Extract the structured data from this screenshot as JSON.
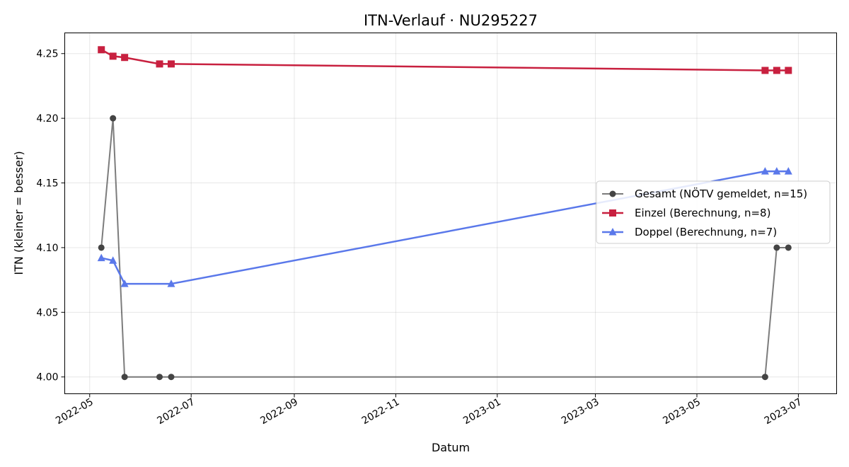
{
  "chart_data": {
    "type": "line",
    "title": "ITN-Verlauf · NU295227",
    "xlabel": "Datum",
    "ylabel": "ITN  (kleiner = besser)",
    "xlim": [
      "2022-04-16",
      "2023-07-24"
    ],
    "ylim": [
      3.987,
      4.266
    ],
    "x_ticks": [
      "2022-05",
      "2022-07",
      "2022-09",
      "2022-11",
      "2023-01",
      "2023-03",
      "2023-05",
      "2023-07"
    ],
    "x_tick_dates": [
      "2022-05-01",
      "2022-07-01",
      "2022-09-01",
      "2022-11-01",
      "2023-01-01",
      "2023-03-01",
      "2023-05-01",
      "2023-07-01"
    ],
    "y_ticks": [
      4.0,
      4.05,
      4.1,
      4.15,
      4.2,
      4.25
    ],
    "y_tick_labels": [
      "4.00",
      "4.05",
      "4.10",
      "4.15",
      "4.20",
      "4.25"
    ],
    "grid": true,
    "legend_position": "right",
    "series": [
      {
        "name": "Gesamt (NÖTV gemeldet, n=15)",
        "color": "#444444",
        "marker": "circle",
        "points": [
          {
            "x": "2022-05-08",
            "y": 4.1
          },
          {
            "x": "2022-05-15",
            "y": 4.2
          },
          {
            "x": "2022-05-22",
            "y": 4.0
          },
          {
            "x": "2022-06-12",
            "y": 4.0
          },
          {
            "x": "2022-06-19",
            "y": 4.0
          },
          {
            "x": "2023-06-11",
            "y": 4.0
          },
          {
            "x": "2023-06-18",
            "y": 4.1
          },
          {
            "x": "2023-06-25",
            "y": 4.1
          }
        ]
      },
      {
        "name": "Einzel (Berechnung, n=8)",
        "color": "#c8203f",
        "marker": "square",
        "points": [
          {
            "x": "2022-05-08",
            "y": 4.253
          },
          {
            "x": "2022-05-15",
            "y": 4.248
          },
          {
            "x": "2022-05-22",
            "y": 4.247
          },
          {
            "x": "2022-06-12",
            "y": 4.242
          },
          {
            "x": "2022-06-19",
            "y": 4.242
          },
          {
            "x": "2023-06-11",
            "y": 4.237
          },
          {
            "x": "2023-06-18",
            "y": 4.237
          },
          {
            "x": "2023-06-25",
            "y": 4.237
          }
        ]
      },
      {
        "name": "Doppel (Berechnung, n=7)",
        "color": "#5a78ea",
        "marker": "triangle",
        "points": [
          {
            "x": "2022-05-08",
            "y": 4.092
          },
          {
            "x": "2022-05-15",
            "y": 4.09
          },
          {
            "x": "2022-05-22",
            "y": 4.072
          },
          {
            "x": "2022-06-19",
            "y": 4.072
          },
          {
            "x": "2023-06-11",
            "y": 4.159
          },
          {
            "x": "2023-06-18",
            "y": 4.159
          },
          {
            "x": "2023-06-25",
            "y": 4.159
          }
        ]
      }
    ]
  }
}
